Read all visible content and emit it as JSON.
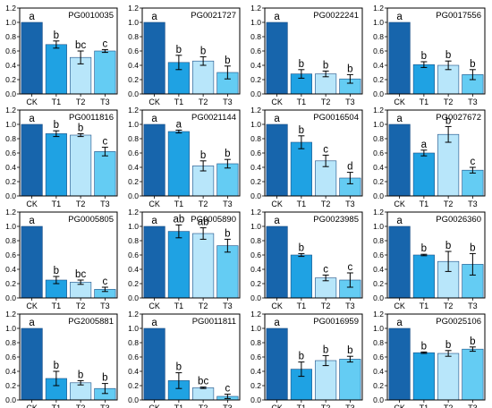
{
  "chart_data": {
    "type": "bar",
    "categories": [
      "CK",
      "T1",
      "T2",
      "T3"
    ],
    "colors": [
      "#1765ac",
      "#1fa2e3",
      "#b8e6fa",
      "#64ccf3"
    ],
    "ylim": [
      0,
      1.2
    ],
    "yticks": [
      "0.0",
      "0.2",
      "0.4",
      "0.6",
      "0.8",
      "1.0",
      "1.2"
    ],
    "grid": false,
    "panels": [
      {
        "title": "PG0010035",
        "values": [
          1.0,
          0.69,
          0.51,
          0.6
        ],
        "errors": [
          0,
          0.05,
          0.09,
          0.02
        ],
        "letters": [
          "a",
          "b",
          "bc",
          "c"
        ]
      },
      {
        "title": "PG0021727",
        "values": [
          1.0,
          0.44,
          0.46,
          0.3
        ],
        "errors": [
          0,
          0.1,
          0.06,
          0.09
        ],
        "letters": [
          "a",
          "b",
          "b",
          "b"
        ]
      },
      {
        "title": "PG0022241",
        "values": [
          1.0,
          0.28,
          0.28,
          0.21
        ],
        "errors": [
          0,
          0.06,
          0.04,
          0.06
        ],
        "letters": [
          "a",
          "b",
          "b",
          "b"
        ]
      },
      {
        "title": "PG0017556",
        "values": [
          1.0,
          0.41,
          0.4,
          0.27
        ],
        "errors": [
          0,
          0.04,
          0.06,
          0.07
        ],
        "letters": [
          "a",
          "b",
          "b",
          "b"
        ]
      },
      {
        "title": "PG0011816",
        "values": [
          1.0,
          0.87,
          0.85,
          0.62
        ],
        "errors": [
          0,
          0.04,
          0.02,
          0.06
        ],
        "letters": [
          "a",
          "b",
          "b",
          "c"
        ]
      },
      {
        "title": "PG0021144",
        "values": [
          1.0,
          0.9,
          0.42,
          0.45
        ],
        "errors": [
          0,
          0.02,
          0.07,
          0.06
        ],
        "letters": [
          "a",
          "a",
          "b",
          "b"
        ]
      },
      {
        "title": "PG0016504",
        "values": [
          1.0,
          0.75,
          0.49,
          0.25
        ],
        "errors": [
          0,
          0.09,
          0.08,
          0.08
        ],
        "letters": [
          "a",
          "b",
          "c",
          "d"
        ]
      },
      {
        "title": "PG0027672",
        "values": [
          1.0,
          0.6,
          0.86,
          0.36
        ],
        "errors": [
          0,
          0.04,
          0.11,
          0.04
        ],
        "letters": [
          "a",
          "a",
          "b",
          "c"
        ]
      },
      {
        "title": "PG0005805",
        "values": [
          1.0,
          0.25,
          0.22,
          0.12
        ],
        "errors": [
          0,
          0.05,
          0.03,
          0.03
        ],
        "letters": [
          "a",
          "b",
          "bc",
          "c"
        ]
      },
      {
        "title": "PG0005890",
        "values": [
          1.0,
          0.93,
          0.9,
          0.73
        ],
        "errors": [
          0,
          0.09,
          0.08,
          0.09
        ],
        "letters": [
          "a",
          "ab",
          "ab",
          "b"
        ]
      },
      {
        "title": "PG0023985",
        "values": [
          1.0,
          0.6,
          0.28,
          0.25
        ],
        "errors": [
          0,
          0.02,
          0.04,
          0.1
        ],
        "letters": [
          "a",
          "b",
          "c",
          "c"
        ]
      },
      {
        "title": "PG0026360",
        "values": [
          1.0,
          0.6,
          0.51,
          0.47
        ],
        "errors": [
          0,
          0.01,
          0.14,
          0.15
        ],
        "letters": [
          "a",
          "b",
          "b",
          "b"
        ]
      },
      {
        "title": "PG2005881",
        "values": [
          1.0,
          0.3,
          0.24,
          0.16
        ],
        "errors": [
          0,
          0.1,
          0.03,
          0.07
        ],
        "letters": [
          "a",
          "b",
          "b",
          "b"
        ]
      },
      {
        "title": "PG0011811",
        "values": [
          1.0,
          0.27,
          0.17,
          0.05
        ],
        "errors": [
          0,
          0.11,
          0.01,
          0.03
        ],
        "letters": [
          "a",
          "b",
          "bc",
          "c"
        ]
      },
      {
        "title": "PG0016959",
        "values": [
          1.0,
          0.43,
          0.55,
          0.57
        ],
        "errors": [
          0,
          0.1,
          0.07,
          0.04
        ],
        "letters": [
          "a",
          "b",
          "b",
          "b"
        ]
      },
      {
        "title": "PG0025106",
        "values": [
          1.0,
          0.66,
          0.65,
          0.71
        ],
        "errors": [
          0,
          0.01,
          0.04,
          0.03
        ],
        "letters": [
          "a",
          "b",
          "b",
          "b"
        ]
      }
    ]
  }
}
